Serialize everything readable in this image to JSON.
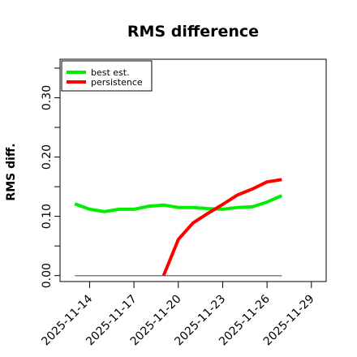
{
  "chart_data": {
    "type": "line",
    "title": "RMS difference",
    "xlabel": "",
    "ylabel": "RMS diff.",
    "x": [
      "2025-11-13",
      "2025-11-14",
      "2025-11-15",
      "2025-11-16",
      "2025-11-17",
      "2025-11-18",
      "2025-11-19",
      "2025-11-20",
      "2025-11-21",
      "2025-11-22",
      "2025-11-23",
      "2025-11-24",
      "2025-11-25",
      "2025-11-26",
      "2025-11-27"
    ],
    "x_ticks": [
      "2025-11-14",
      "2025-11-17",
      "2025-11-20",
      "2025-11-23",
      "2025-11-26",
      "2025-11-29"
    ],
    "xlim": [
      "2025-11-12",
      "2025-11-30"
    ],
    "y_ticks": [
      "0.00",
      "0.10",
      "0.20",
      "0.30"
    ],
    "ylim": [
      -0.01,
      0.365
    ],
    "grid": false,
    "legend_position": "top-left",
    "series": [
      {
        "name": "best est.",
        "color": "#00ee00",
        "values": [
          0.121,
          0.112,
          0.108,
          0.112,
          0.112,
          0.117,
          0.119,
          0.115,
          0.115,
          0.113,
          0.112,
          0.115,
          0.116,
          0.124,
          0.135
        ]
      },
      {
        "name": "persistence",
        "color": "#ff0000",
        "values": [
          null,
          null,
          null,
          null,
          null,
          null,
          0.0,
          0.061,
          0.089,
          0.105,
          0.12,
          0.136,
          0.146,
          0.158,
          0.162
        ]
      }
    ],
    "baseline": {
      "value": 0.0,
      "from": "2025-11-13",
      "to": "2025-11-27",
      "color": "#808080"
    }
  }
}
